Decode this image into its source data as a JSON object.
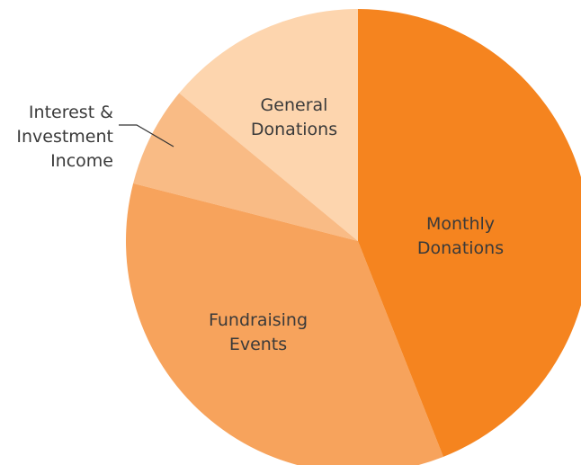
{
  "chart_data": {
    "type": "pie",
    "categories": [
      "Monthly\nDonations",
      "Fundraising\nEvents",
      "Interest &\nInvestment\nIncome",
      "General\nDonations"
    ],
    "values": [
      44,
      35,
      7,
      14
    ],
    "colors": [
      "#f5841f",
      "#f7a35c",
      "#f9bb85",
      "#fdd5ae"
    ]
  }
}
